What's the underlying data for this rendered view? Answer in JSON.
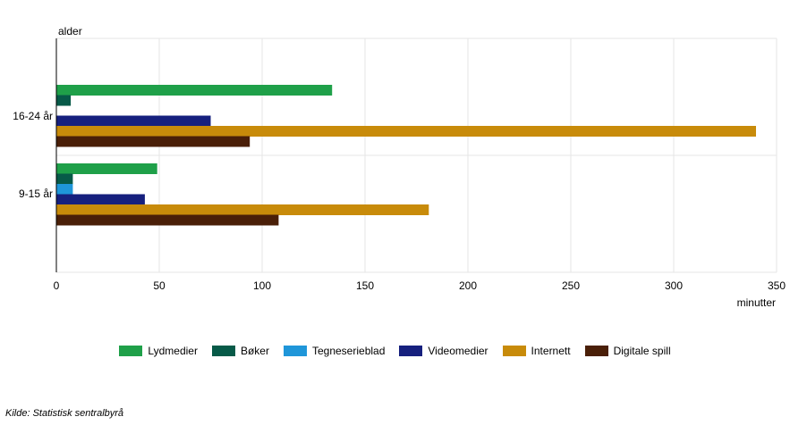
{
  "chart_data": {
    "type": "bar",
    "orientation": "horizontal",
    "categories": [
      "16-24 år",
      "9-15 år"
    ],
    "series": [
      {
        "name": "Lydmedier",
        "color": "#1fa049",
        "values": [
          134,
          49
        ]
      },
      {
        "name": "Bøker",
        "color": "#075a48",
        "values": [
          7,
          8
        ]
      },
      {
        "name": "Tegneserieblad",
        "color": "#1f96d9",
        "values": [
          0,
          8
        ]
      },
      {
        "name": "Videomedier",
        "color": "#16207e",
        "values": [
          75,
          43
        ]
      },
      {
        "name": "Internett",
        "color": "#c88b0a",
        "values": [
          340,
          181
        ]
      },
      {
        "name": "Digitale spill",
        "color": "#4a1f08",
        "values": [
          94,
          108
        ]
      }
    ],
    "xlabel": "minutter",
    "ylabel": "alder",
    "xlim": [
      0,
      350
    ],
    "xticks": [
      0,
      50,
      100,
      150,
      200,
      250,
      300,
      350
    ],
    "grid": true,
    "legend_position": "bottom"
  },
  "source": "Kilde:  Statistisk sentralbyrå"
}
